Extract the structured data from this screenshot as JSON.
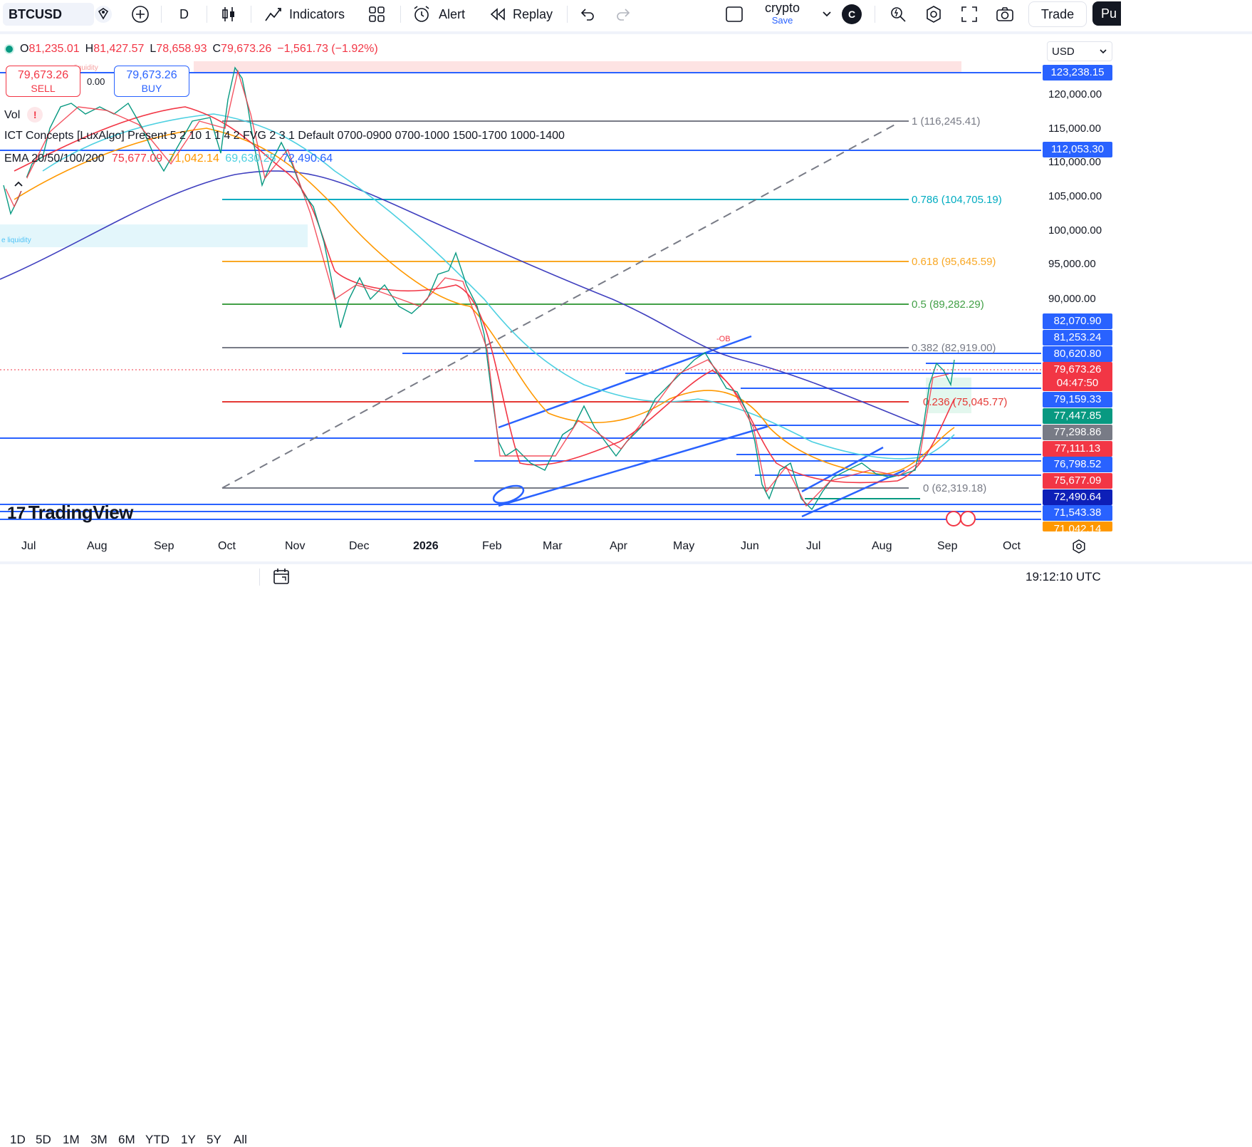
{
  "toolbar": {
    "symbol": "BTCUSD",
    "interval": "D",
    "indicators_label": "Indicators",
    "alert_label": "Alert",
    "replay_label": "Replay",
    "layout_name": "crypto",
    "layout_save": "Save",
    "layout_badge": "C",
    "trade_label": "Trade",
    "publish_label": "Pu"
  },
  "legend": {
    "open_label": "O",
    "open": "81,235.01",
    "high_label": "H",
    "high": "81,427.57",
    "low_label": "L",
    "low": "78,658.93",
    "close_label": "C",
    "close": "79,673.26",
    "change": "−1,561.73 (−1.92%)",
    "vol_label": "Vol",
    "ict_label": "ICT Concepts [LuxAlgo] Present 5 2 10 1 1 4 2 FVG 2 3 1 Default 0700-0900 0700-1000 1500-1700 1000-1400",
    "ema_label": "EMA 20/50/100/200",
    "ema20": "75,677.09",
    "ema50": "71,042.14",
    "ema100": "69,630.25",
    "ema200": "72,490.64",
    "colors": {
      "ema20": "#f23645",
      "ema50": "#ff9800",
      "ema100": "#4dd0e1",
      "ema200": "#2962ff"
    }
  },
  "trade_panel": {
    "sell_price": "79,673.26",
    "sell_label": "SELL",
    "spread": "0.00",
    "buy_price": "79,673.26",
    "buy_label": "BUY"
  },
  "chart_annotations": {
    "liquidity_top": "e liquidity",
    "liquidity_left": "e liquidity",
    "ob_label": "-OB"
  },
  "fib": [
    {
      "label": "1 (116,245.41)",
      "color": "#787b86"
    },
    {
      "label": "0.786 (104,705.19)",
      "color": "#00acc1"
    },
    {
      "label": "0.618 (95,645.59)",
      "color": "#f9a825"
    },
    {
      "label": "0.5 (89,282.29)",
      "color": "#43a047"
    },
    {
      "label": "0.382 (82,919.00)",
      "color": "#787b86"
    },
    {
      "label": "0.236 (75,045.77)",
      "color": "#e53935"
    },
    {
      "label": "0 (62,319.18)",
      "color": "#787b86"
    }
  ],
  "price_axis": {
    "currency": "USD",
    "ticks": [
      "120,000.00",
      "115,000.00",
      "110,000.00",
      "105,000.00",
      "100,000.00",
      "95,000.00",
      "90,000.00"
    ],
    "labels": [
      {
        "text": "123,238.15",
        "bg": "#2962ff",
        "fg": "#ffffff"
      },
      {
        "text": "112,053.30",
        "bg": "#2962ff",
        "fg": "#ffffff"
      },
      {
        "text": "82,070.90",
        "bg": "#2962ff",
        "fg": "#ffffff"
      },
      {
        "text": "81,253.24",
        "bg": "#2962ff",
        "fg": "#ffffff"
      },
      {
        "text": "80,620.80",
        "bg": "#2962ff",
        "fg": "#ffffff"
      },
      {
        "text": "79,673.26",
        "bg": "#f23645",
        "fg": "#ffffff"
      },
      {
        "text": "04:47:50",
        "bg": "#f23645",
        "fg": "#ffffff"
      },
      {
        "text": "79,159.33",
        "bg": "#2962ff",
        "fg": "#ffffff"
      },
      {
        "text": "77,447.85",
        "bg": "#089981",
        "fg": "#ffffff"
      },
      {
        "text": "77,298.86",
        "bg": "#787b86",
        "fg": "#ffffff"
      },
      {
        "text": "77,111.13",
        "bg": "#f23645",
        "fg": "#ffffff"
      },
      {
        "text": "76,798.52",
        "bg": "#2962ff",
        "fg": "#ffffff"
      },
      {
        "text": "75,677.09",
        "bg": "#f23645",
        "fg": "#ffffff"
      },
      {
        "text": "72,490.64",
        "bg": "#0d1fb8",
        "fg": "#ffffff"
      },
      {
        "text": "71,543.38",
        "bg": "#2962ff",
        "fg": "#ffffff"
      },
      {
        "text": "71,042.14",
        "bg": "#ff9800",
        "fg": "#ffffff"
      }
    ]
  },
  "time_axis": [
    "Jul",
    "Aug",
    "Sep",
    "Oct",
    "Nov",
    "Dec",
    "2026",
    "Feb",
    "Mar",
    "Apr",
    "May",
    "Jun",
    "Jul",
    "Aug",
    "Sep",
    "Oct"
  ],
  "ranges": [
    "1D",
    "5D",
    "1M",
    "3M",
    "6M",
    "YTD",
    "1Y",
    "5Y",
    "All"
  ],
  "clock": "19:12:10 UTC",
  "watermark": "TradingView"
}
